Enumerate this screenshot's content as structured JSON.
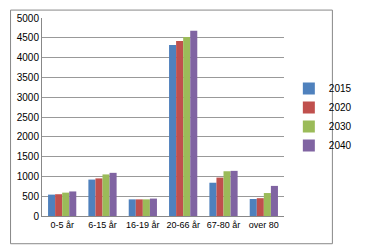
{
  "chart_data": {
    "type": "bar",
    "categories": [
      "0-5 år",
      "6-15 år",
      "16-19 år",
      "20-66 år",
      "67-80 år",
      "over 80"
    ],
    "series": [
      {
        "name": "2015",
        "color": "#4f81bd",
        "values": [
          540,
          920,
          420,
          4320,
          840,
          430
        ]
      },
      {
        "name": "2020",
        "color": "#c0504d",
        "values": [
          550,
          950,
          420,
          4420,
          970,
          450
        ]
      },
      {
        "name": "2030",
        "color": "#9bbb59",
        "values": [
          590,
          1050,
          420,
          4520,
          1130,
          580
        ]
      },
      {
        "name": "2040",
        "color": "#8064a2",
        "values": [
          620,
          1090,
          440,
          4680,
          1140,
          760
        ]
      }
    ],
    "ylim": [
      0,
      5000
    ],
    "yticks": [
      0,
      500,
      1000,
      1500,
      2000,
      2500,
      3000,
      3500,
      4000,
      4500,
      5000
    ],
    "grid": true,
    "legend": "right"
  }
}
